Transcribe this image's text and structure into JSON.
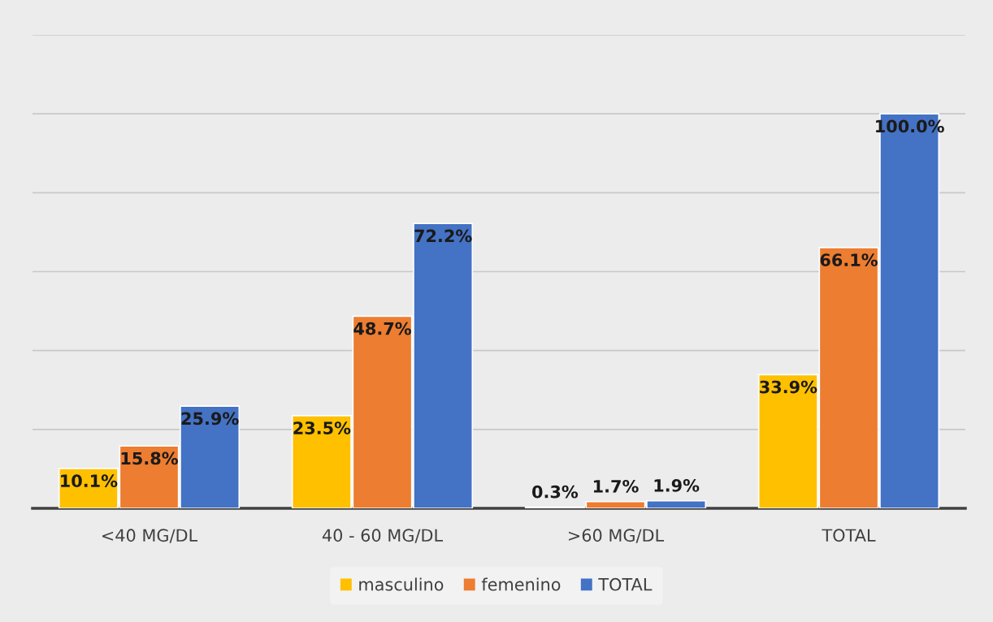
{
  "chart_data": {
    "type": "bar",
    "categories": [
      "<40 MG/DL",
      "40 - 60 MG/DL",
      ">60 MG/DL",
      "TOTAL"
    ],
    "series": [
      {
        "name": "masculino",
        "color": "#ffc000",
        "values": [
          10.1,
          23.5,
          0.3,
          33.9
        ],
        "value_labels": [
          "10.1%",
          "23.5%",
          "0.3%",
          "33.9%"
        ]
      },
      {
        "name": "femenino",
        "color": "#ed7d31",
        "values": [
          15.8,
          48.7,
          1.7,
          66.1
        ],
        "value_labels": [
          "15.8%",
          "48.7%",
          "1.7%",
          "66.1%"
        ]
      },
      {
        "name": "TOTAL",
        "color": "#4472c4",
        "values": [
          25.9,
          72.2,
          1.9,
          100.0
        ],
        "value_labels": [
          "25.9%",
          "72.2%",
          "1.9%",
          "100.0%"
        ]
      }
    ],
    "ylim": [
      0,
      120
    ],
    "yticks": [
      {
        "value": 0,
        "label": null
      },
      {
        "value": 20,
        "label": null
      },
      {
        "value": 40,
        "label": null
      },
      {
        "value": 60,
        "label": null
      },
      {
        "value": 80,
        "label": null
      },
      {
        "value": 100,
        "label": null
      },
      {
        "value": 120,
        "label": null
      }
    ],
    "grid": "y",
    "legend": "bottom",
    "tick_labels": "x"
  }
}
